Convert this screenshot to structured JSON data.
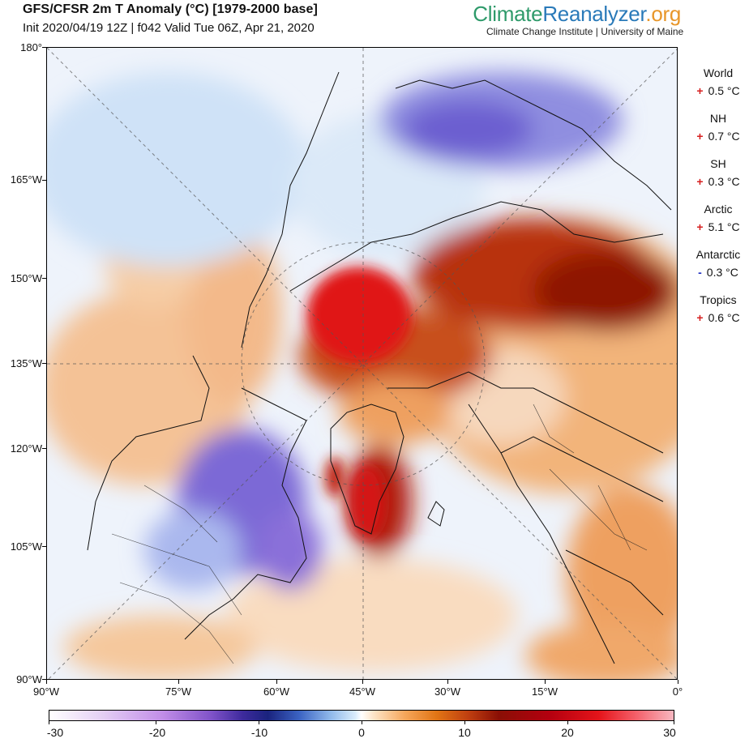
{
  "header": {
    "title": "GFS/CFSR 2m T Anomaly (°C) [1979-2000 base]",
    "subtitle": "Init 2020/04/19 12Z | f042 Valid Tue 06Z, Apr 21, 2020"
  },
  "brand": {
    "part1": "Climate",
    "part2": "Reanalyzer",
    "part3": ".org",
    "subtitle": "Climate Change Institute | University of Maine",
    "colors": {
      "climate": "#2e9a6a",
      "reanalyzer": "#2a7ab9",
      "org": "#e8962a"
    }
  },
  "map": {
    "left_axis_labels": [
      "180°",
      "165°W",
      "150°W",
      "135°W",
      "120°W",
      "105°W",
      "90°W"
    ],
    "bottom_axis_labels": [
      "90°W",
      "75°W",
      "60°W",
      "45°W",
      "30°W",
      "15°W",
      "0°"
    ],
    "projection": "polar-stereographic",
    "variable": "2m temperature anomaly"
  },
  "stats": [
    {
      "name": "World",
      "sign": "+",
      "value": "0.5 °C",
      "color": "#d62020"
    },
    {
      "name": "NH",
      "sign": "+",
      "value": "0.7 °C",
      "color": "#d62020"
    },
    {
      "name": "SH",
      "sign": "+",
      "value": "0.3 °C",
      "color": "#d62020"
    },
    {
      "name": "Arctic",
      "sign": "+",
      "value": "5.1 °C",
      "color": "#d62020"
    },
    {
      "name": "Antarctic",
      "sign": "-",
      "value": "0.3 °C",
      "color": "#2030c0"
    },
    {
      "name": "Tropics",
      "sign": "+",
      "value": "0.6 °C",
      "color": "#d62020"
    }
  ],
  "colorbar": {
    "min": -30,
    "max": 30,
    "tick_labels": [
      "-30",
      "-20",
      "-10",
      "0",
      "10",
      "20",
      "30"
    ]
  }
}
